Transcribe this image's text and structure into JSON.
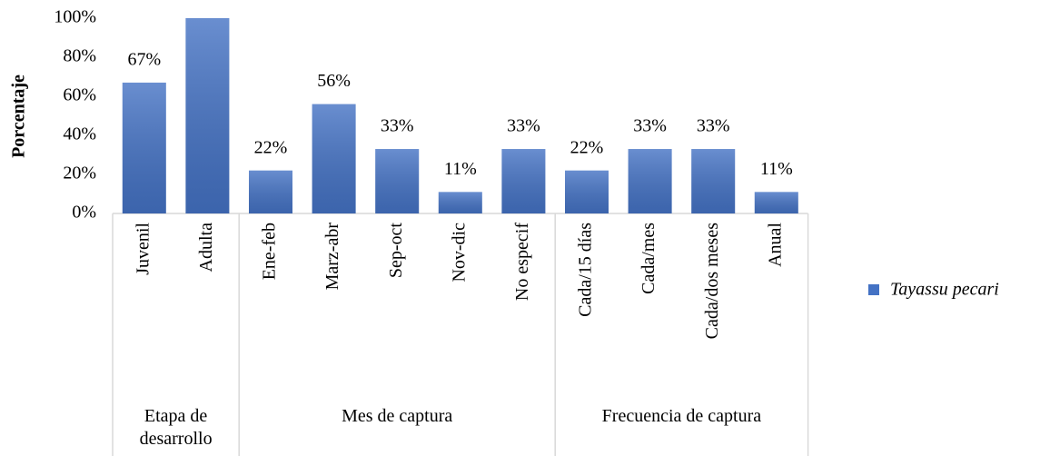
{
  "chart_data": {
    "type": "bar",
    "y_label": "Porcentaje",
    "groups": [
      {
        "label": "Etapa de desarrollo",
        "categories": [
          "Juvenil",
          "Adulta"
        ]
      },
      {
        "label": "Mes de captura",
        "categories": [
          "Ene-feb",
          "Marz-abr",
          "Sep-oct",
          "Nov-dic",
          "No especif"
        ]
      },
      {
        "label": "Frecuencia de captura",
        "categories": [
          "Cada/15 días",
          "Cada/mes",
          "Cada/dos meses",
          "Anual"
        ]
      }
    ],
    "series": [
      {
        "name": "Tayassu pecari",
        "color": "#4472c4",
        "values": [
          67,
          100,
          22,
          56,
          33,
          11,
          33,
          22,
          33,
          33,
          11
        ],
        "value_labels": [
          "67%",
          null,
          "22%",
          "56%",
          "33%",
          "11%",
          "33%",
          "22%",
          "33%",
          "33%",
          "11%"
        ]
      }
    ],
    "ylim": [
      0,
      100
    ],
    "yticks": [
      {
        "value": 0,
        "label": "0%"
      },
      {
        "value": 20,
        "label": "20%"
      },
      {
        "value": 40,
        "label": "40%"
      },
      {
        "value": 60,
        "label": "60%"
      },
      {
        "value": 80,
        "label": "80%"
      },
      {
        "value": 100,
        "label": "100%"
      }
    ],
    "grid": false,
    "legend": "right"
  }
}
